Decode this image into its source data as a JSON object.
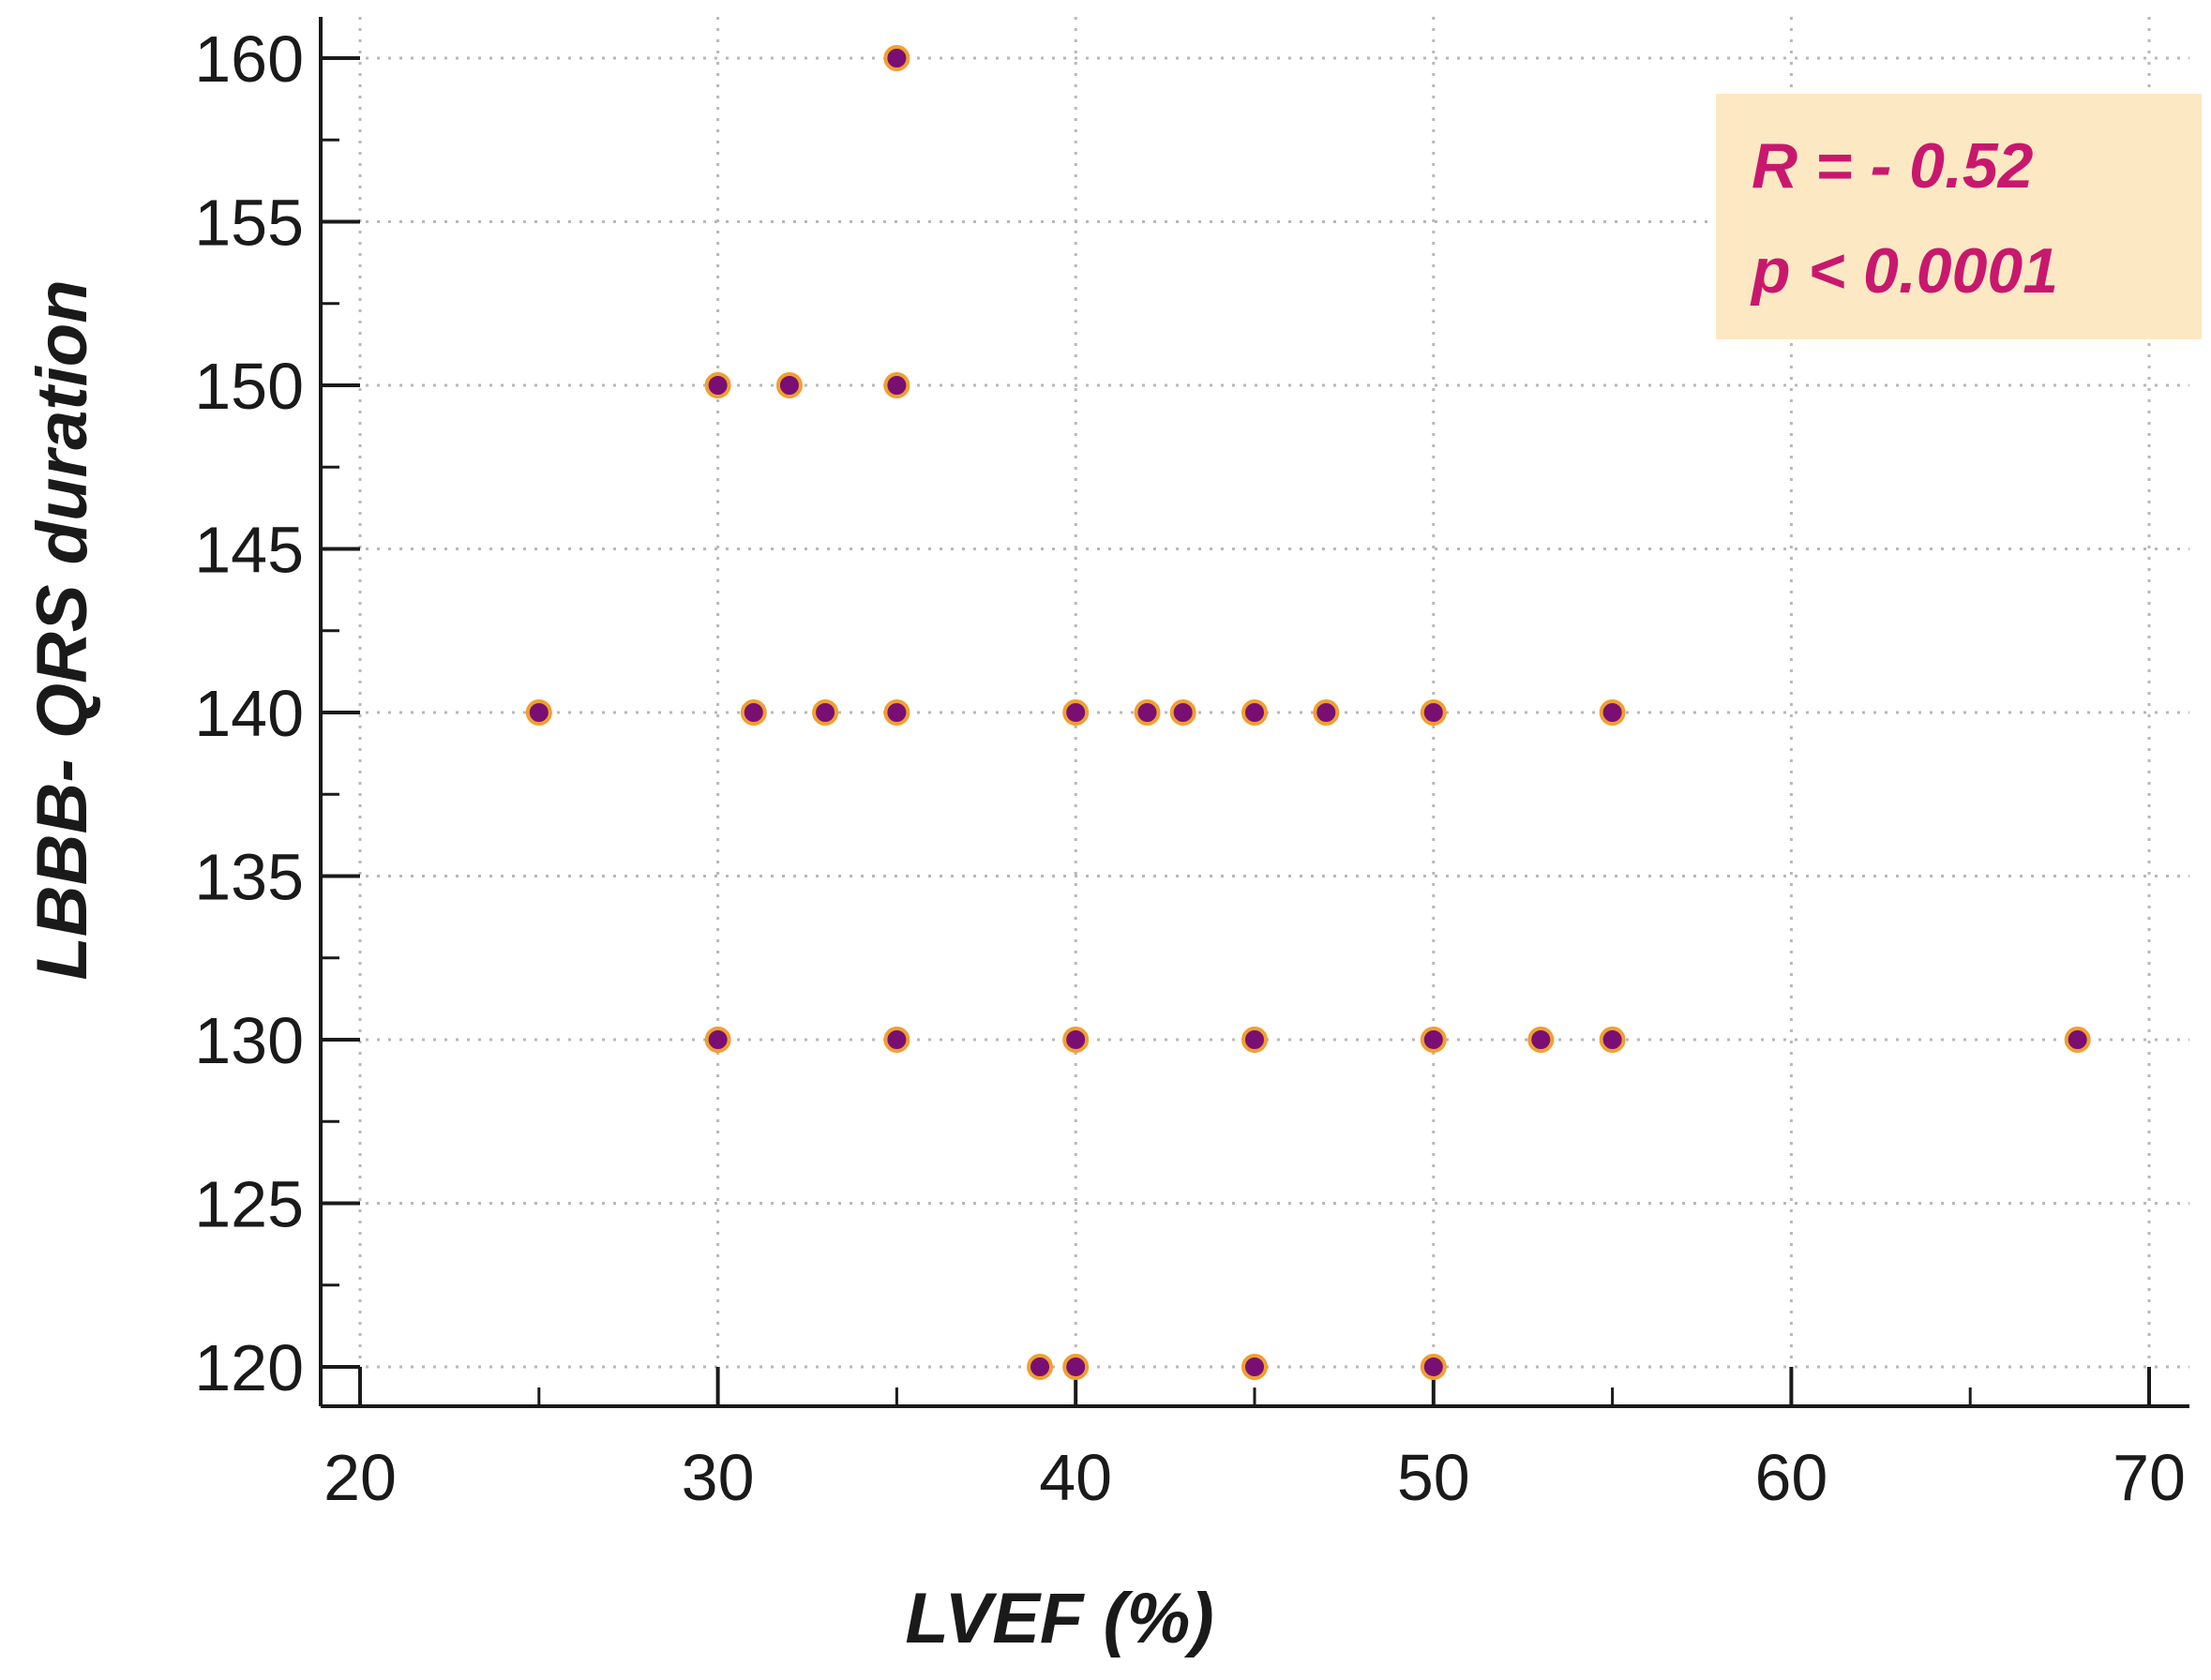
{
  "chart_data": {
    "type": "scatter",
    "xlabel": "LVEF (%)",
    "ylabel": "LBBB- QRS duration",
    "xlim": [
      20,
      70
    ],
    "ylim": [
      120,
      160
    ],
    "x_ticks": [
      20,
      30,
      40,
      50,
      60,
      70
    ],
    "y_ticks": [
      120,
      125,
      130,
      135,
      140,
      145,
      150,
      155,
      160
    ],
    "grid": true,
    "annotation": {
      "lines": [
        "R = - 0.52",
        "p < 0.0001"
      ],
      "placement": "top-right",
      "background": "#FCE9C3",
      "text_color": "#C8186E"
    },
    "marker": {
      "fill": "#7A0F73",
      "edge": "#F0A030"
    },
    "points": [
      {
        "x": 35,
        "y": 160
      },
      {
        "x": 30,
        "y": 150
      },
      {
        "x": 32,
        "y": 150
      },
      {
        "x": 35,
        "y": 150
      },
      {
        "x": 25,
        "y": 140
      },
      {
        "x": 31,
        "y": 140
      },
      {
        "x": 33,
        "y": 140
      },
      {
        "x": 35,
        "y": 140
      },
      {
        "x": 40,
        "y": 140
      },
      {
        "x": 42,
        "y": 140
      },
      {
        "x": 43,
        "y": 140
      },
      {
        "x": 45,
        "y": 140
      },
      {
        "x": 47,
        "y": 140
      },
      {
        "x": 50,
        "y": 140
      },
      {
        "x": 55,
        "y": 140
      },
      {
        "x": 30,
        "y": 130
      },
      {
        "x": 35,
        "y": 130
      },
      {
        "x": 40,
        "y": 130
      },
      {
        "x": 45,
        "y": 130
      },
      {
        "x": 50,
        "y": 130
      },
      {
        "x": 53,
        "y": 130
      },
      {
        "x": 55,
        "y": 130
      },
      {
        "x": 68,
        "y": 130
      },
      {
        "x": 39,
        "y": 120
      },
      {
        "x": 40,
        "y": 120
      },
      {
        "x": 45,
        "y": 120
      },
      {
        "x": 50,
        "y": 120
      }
    ]
  }
}
